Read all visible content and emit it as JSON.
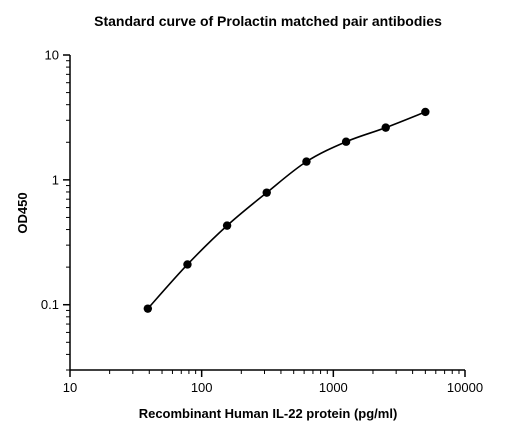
{
  "chart_data": {
    "type": "scatter",
    "title": "Standard curve of Prolactin matched pair antibodies",
    "xlabel": "Recombinant Human IL-22 protein (pg/ml)",
    "ylabel": "OD450",
    "xscale": "log",
    "yscale": "log",
    "xlim": [
      10,
      10000
    ],
    "ylim": [
      0.03,
      10
    ],
    "x_ticks": [
      {
        "value": 10,
        "label": "10"
      },
      {
        "value": 100,
        "label": "100"
      },
      {
        "value": 1000,
        "label": "1000"
      },
      {
        "value": 10000,
        "label": "10000"
      }
    ],
    "y_ticks": [
      {
        "value": 0.1,
        "label": "0.1"
      },
      {
        "value": 1,
        "label": "1"
      },
      {
        "value": 10,
        "label": "10"
      }
    ],
    "grid": false,
    "legend": "none",
    "fit_curve": true,
    "series": [
      {
        "x": [
          39,
          78,
          156,
          312,
          625,
          1250,
          2500,
          5000
        ],
        "y": [
          0.093,
          0.21,
          0.43,
          0.79,
          1.4,
          2.02,
          2.62,
          3.5
        ]
      }
    ],
    "colors": {
      "marker": "#000000",
      "curve": "#000000",
      "axis": "#000000"
    }
  }
}
